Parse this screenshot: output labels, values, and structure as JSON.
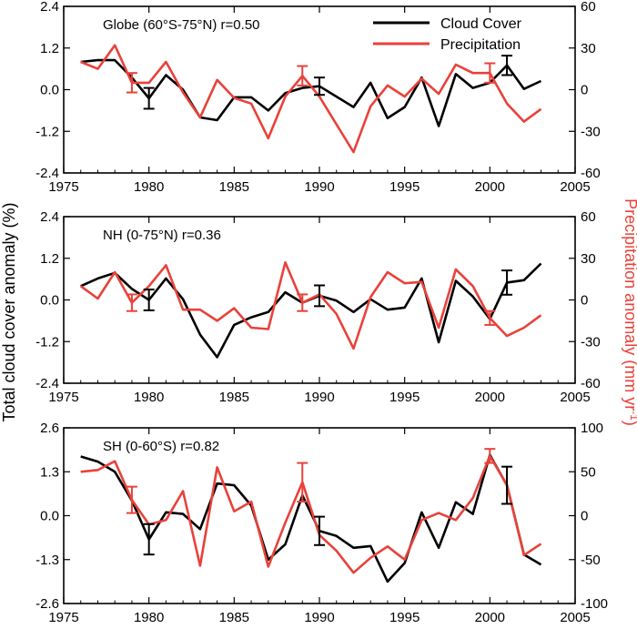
{
  "ylabel_left": "Total cloud cover anomaly (%)",
  "ylabel_right_main": "Precipitation anomaly (mm yr",
  "ylabel_right_sup": "-1",
  "ylabel_right_close": ")",
  "legend": {
    "cloud": "Cloud Cover",
    "precip": "Precipitation"
  },
  "colors": {
    "cloud": "#000000",
    "precip": "#e8423a"
  },
  "chart_data": [
    {
      "type": "line",
      "title": "Globe (60°S-75°N)  r=0.50",
      "x_ticks": [
        "1975",
        "1980",
        "1985",
        "1990",
        "1995",
        "2000",
        "2005"
      ],
      "xlim": [
        1975,
        2005
      ],
      "y_left_ticks": [
        "2.4",
        "1.2",
        "0.0",
        "-1.2",
        "-2.4"
      ],
      "ylim_left": [
        -2.4,
        2.4
      ],
      "y_right_ticks": [
        "60",
        "30",
        "0",
        "-30",
        "-60"
      ],
      "ylim_right": [
        -60,
        60
      ],
      "series": [
        {
          "name": "Cloud Cover",
          "axis": "left",
          "x": [
            1976,
            1977,
            1978,
            1979,
            1980,
            1981,
            1982,
            1983,
            1984,
            1985,
            1986,
            1987,
            1988,
            1989,
            1990,
            1991,
            1992,
            1993,
            1994,
            1995,
            1996,
            1997,
            1998,
            1999,
            2000,
            2001,
            2002,
            2003
          ],
          "y": [
            0.8,
            0.85,
            0.85,
            0.35,
            -0.25,
            0.42,
            0.0,
            -0.8,
            -0.88,
            -0.22,
            -0.22,
            -0.6,
            -0.1,
            0.05,
            0.1,
            -0.2,
            -0.5,
            0.2,
            -0.82,
            -0.5,
            0.35,
            -1.05,
            0.45,
            0.05,
            0.2,
            0.7,
            0.02,
            0.25
          ]
        },
        {
          "name": "Precipitation",
          "axis": "right",
          "x": [
            1976,
            1977,
            1978,
            1979,
            1980,
            1981,
            1982,
            1983,
            1984,
            1985,
            1986,
            1987,
            1988,
            1989,
            1990,
            1991,
            1992,
            1993,
            1994,
            1995,
            1996,
            1997,
            1998,
            1999,
            2000,
            2001,
            2002,
            2003
          ],
          "y": [
            20,
            15,
            32,
            5,
            5,
            20,
            -2,
            -20,
            7,
            -6,
            -10,
            -35,
            -5,
            10,
            -5,
            -25,
            -45,
            -12,
            3,
            -5,
            8,
            -3,
            18,
            12,
            12,
            -10,
            -23,
            -14
          ]
        }
      ],
      "error_bars": [
        {
          "series": "Cloud Cover",
          "x": 1980,
          "y": -0.25,
          "err": 0.3
        },
        {
          "series": "Cloud Cover",
          "x": 1990,
          "y": 0.1,
          "err": 0.25
        },
        {
          "series": "Cloud Cover",
          "x": 2001,
          "y": 0.7,
          "err": 0.28
        },
        {
          "series": "Precipitation",
          "x": 1979,
          "y": 5,
          "err": 7
        },
        {
          "series": "Precipitation",
          "x": 1989,
          "y": 10,
          "err": 7
        },
        {
          "series": "Precipitation",
          "x": 2000,
          "y": 12,
          "err": 7
        }
      ]
    },
    {
      "type": "line",
      "title": "NH (0-75°N)   r=0.36",
      "x_ticks": [
        "1975",
        "1980",
        "1985",
        "1990",
        "1995",
        "2000",
        "2005"
      ],
      "xlim": [
        1975,
        2005
      ],
      "y_left_ticks": [
        "2.4",
        "1.2",
        "0.0",
        "-1.2",
        "-2.4"
      ],
      "ylim_left": [
        -2.4,
        2.4
      ],
      "y_right_ticks": [
        "60",
        "30",
        "0",
        "-30",
        "-60"
      ],
      "ylim_right": [
        -60,
        60
      ],
      "series": [
        {
          "name": "Cloud Cover",
          "axis": "left",
          "x": [
            1976,
            1977,
            1978,
            1979,
            1980,
            1981,
            1982,
            1983,
            1984,
            1985,
            1986,
            1987,
            1988,
            1989,
            1990,
            1991,
            1992,
            1993,
            1994,
            1995,
            1996,
            1997,
            1998,
            1999,
            2000,
            2001,
            2002,
            2003
          ],
          "y": [
            0.4,
            0.62,
            0.78,
            0.32,
            0.0,
            0.62,
            0.02,
            -1.0,
            -1.65,
            -0.72,
            -0.5,
            -0.35,
            0.22,
            -0.08,
            0.12,
            -0.02,
            -0.35,
            0.02,
            -0.28,
            -0.22,
            0.62,
            -1.22,
            0.55,
            0.1,
            -0.55,
            0.5,
            0.57,
            1.05
          ]
        },
        {
          "name": "Precipitation",
          "axis": "right",
          "x": [
            1976,
            1977,
            1978,
            1979,
            1980,
            1981,
            1982,
            1983,
            1984,
            1985,
            1986,
            1987,
            1988,
            1989,
            1990,
            1991,
            1992,
            1993,
            1994,
            1995,
            1996,
            1997,
            1998,
            1999,
            2000,
            2001,
            2002,
            2003
          ],
          "y": [
            10,
            1,
            20,
            -2,
            10,
            25,
            -7,
            -7,
            -15,
            -6,
            -20,
            -21,
            27,
            -2,
            4,
            -10,
            -35,
            2,
            20,
            12,
            13,
            -20,
            22,
            10,
            -13,
            -26,
            -20,
            -11
          ]
        }
      ],
      "error_bars": [
        {
          "series": "Cloud Cover",
          "x": 1980,
          "y": 0.0,
          "err": 0.3
        },
        {
          "series": "Cloud Cover",
          "x": 1990,
          "y": 0.12,
          "err": 0.3
        },
        {
          "series": "Cloud Cover",
          "x": 2001,
          "y": 0.5,
          "err": 0.35
        },
        {
          "series": "Precipitation",
          "x": 1979,
          "y": -2,
          "err": 6
        },
        {
          "series": "Precipitation",
          "x": 1989,
          "y": -2,
          "err": 6
        },
        {
          "series": "Precipitation",
          "x": 2000,
          "y": -13,
          "err": 5
        }
      ]
    },
    {
      "type": "line",
      "title": "SH (0-60°S)   r=0.82",
      "x_ticks": [
        "1975",
        "1980",
        "1985",
        "1990",
        "1995",
        "2000",
        "2005"
      ],
      "xlim": [
        1975,
        2005
      ],
      "y_left_ticks": [
        "2.6",
        "1.3",
        "0.0",
        "-1.3",
        "-2.6"
      ],
      "ylim_left": [
        -2.6,
        2.6
      ],
      "y_right_ticks": [
        "100",
        "50",
        "0",
        "-50",
        "-100"
      ],
      "ylim_right": [
        -100,
        100
      ],
      "series": [
        {
          "name": "Cloud Cover",
          "axis": "left",
          "x": [
            1976,
            1977,
            1978,
            1979,
            1980,
            1981,
            1982,
            1983,
            1984,
            1985,
            1986,
            1987,
            1988,
            1989,
            1990,
            1991,
            1992,
            1993,
            1994,
            1995,
            1996,
            1997,
            1998,
            1999,
            2000,
            2001,
            2002,
            2003
          ],
          "y": [
            1.75,
            1.6,
            1.3,
            0.45,
            -0.7,
            0.1,
            0.05,
            -0.4,
            0.95,
            0.9,
            0.3,
            -1.3,
            -0.85,
            0.6,
            -0.45,
            -0.6,
            -0.95,
            -0.9,
            -1.95,
            -1.4,
            0.1,
            -0.95,
            0.4,
            0.05,
            1.8,
            0.9,
            -1.15,
            -1.45
          ]
        },
        {
          "name": "Precipitation",
          "axis": "right",
          "x": [
            1976,
            1977,
            1978,
            1979,
            1980,
            1981,
            1982,
            1983,
            1984,
            1985,
            1986,
            1987,
            1988,
            1989,
            1990,
            1991,
            1992,
            1993,
            1994,
            1995,
            1996,
            1997,
            1998,
            1999,
            2000,
            2001,
            2002,
            2003
          ],
          "y": [
            50,
            52,
            62,
            18,
            -10,
            -5,
            28,
            -57,
            55,
            5,
            16,
            -58,
            -8,
            38,
            -22,
            -40,
            -65,
            -48,
            -35,
            -50,
            -5,
            3,
            -5,
            20,
            68,
            35,
            -45,
            -32
          ]
        }
      ],
      "error_bars": [
        {
          "series": "Cloud Cover",
          "x": 1980,
          "y": -0.7,
          "err": 0.45
        },
        {
          "series": "Cloud Cover",
          "x": 1990,
          "y": -0.45,
          "err": 0.42
        },
        {
          "series": "Cloud Cover",
          "x": 2001,
          "y": 0.9,
          "err": 0.55
        },
        {
          "series": "Precipitation",
          "x": 1979,
          "y": 18,
          "err": 15
        },
        {
          "series": "Precipitation",
          "x": 1989,
          "y": 38,
          "err": 22
        },
        {
          "series": "Precipitation",
          "x": 2000,
          "y": 68,
          "err": 8
        }
      ]
    }
  ]
}
